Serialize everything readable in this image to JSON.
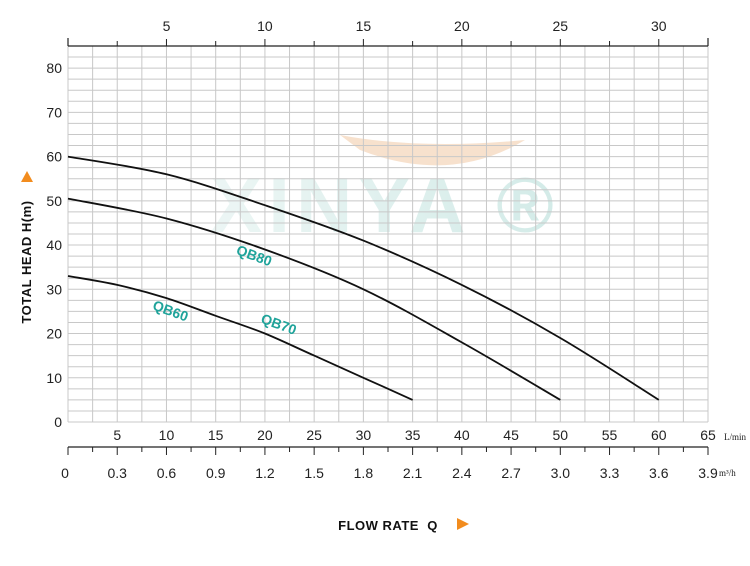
{
  "chart_data": {
    "type": "line",
    "watermark": "XINYA ®",
    "ylabel": "TOTAL HEAD H(m)",
    "xlabel": "FLOW RATE  Q",
    "ylim": [
      0,
      85
    ],
    "xlim_lmin": [
      0,
      65
    ],
    "yticks": [
      "0",
      "10",
      "20",
      "30",
      "40",
      "50",
      "60",
      "70",
      "80"
    ],
    "x_lmin_ticks": [
      "5",
      "10",
      "15",
      "20",
      "25",
      "30",
      "35",
      "40",
      "45",
      "50",
      "55",
      "60",
      "65"
    ],
    "x_lmin_unit": "L/min",
    "x_m3h_ticks": [
      "0",
      "0.3",
      "0.6",
      "0.9",
      "1.2",
      "1.5",
      "1.8",
      "2.1",
      "2.4",
      "2.7",
      "3.0",
      "3.3",
      "3.6",
      "3.9"
    ],
    "x_m3h_unit": "m³/h",
    "x_top_ticks": [
      "5",
      "10",
      "15",
      "20",
      "25",
      "30"
    ],
    "grid": true,
    "series": [
      {
        "name": "QB60",
        "color": "#111111",
        "label_color": "#1fa39a",
        "x": [
          0,
          5,
          10,
          15,
          20,
          25,
          30,
          35
        ],
        "y": [
          33,
          31,
          28,
          24,
          20,
          15,
          10,
          5
        ]
      },
      {
        "name": "QB70",
        "color": "#111111",
        "label_color": "#1fa39a",
        "x": [
          0,
          10,
          20,
          30,
          40,
          50
        ],
        "y": [
          50.5,
          46,
          39,
          30,
          18,
          5
        ]
      },
      {
        "name": "QB80",
        "color": "#111111",
        "label_color": "#1fa39a",
        "x": [
          0,
          10,
          20,
          30,
          40,
          50,
          60
        ],
        "y": [
          60,
          56,
          49,
          41,
          31,
          19,
          5
        ]
      }
    ]
  }
}
